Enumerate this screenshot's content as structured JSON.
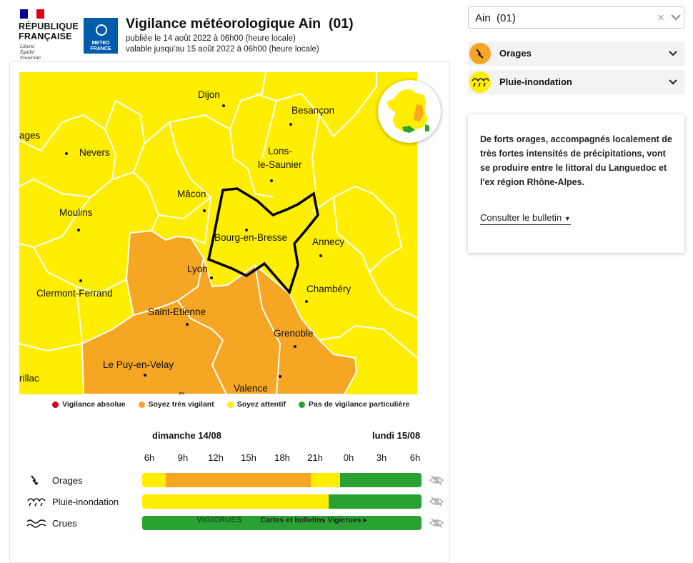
{
  "header": {
    "republique_line1": "RÉPUBLIQUE",
    "republique_line2": "FRANÇAISE",
    "motto_1": "Liberté",
    "motto_2": "Égalité",
    "motto_3": "Fraternité",
    "meteo_line1": "METEO",
    "meteo_line2": "FRANCE",
    "title": "Vigilance météorologique Ain  (01)",
    "published": "publiée le 14 août 2022 à 06h00 (heure locale)",
    "valid_until": "valable jusqu'au 15 août 2022 à 06h00 (heure locale)"
  },
  "map": {
    "cities": {
      "dijon": "Dijon",
      "besancon": "Besançon",
      "orages_cut": "ages",
      "nevers": "Nevers",
      "lons_1": "Lons-",
      "lons_2": "le-Saunier",
      "macon": "Mâcon",
      "moulins": "Moulins",
      "bourg": "Bourg-en-Bresse",
      "annecy": "Annecy",
      "lyon": "Lyon",
      "clermont": "Clermont-Ferrand",
      "chambery": "Chambéry",
      "saint_etienne": "Saint-Etienne",
      "grenoble": "Grenoble",
      "le_puy": "Le Puy-en-Velay",
      "aurillac_cut": "rillac",
      "valence": "Valence",
      "privas_cut": "P"
    }
  },
  "legend": [
    {
      "label": "Vigilance absolue",
      "color": "#d0021b"
    },
    {
      "label": "Soyez très vigilant",
      "color": "#f5a623"
    },
    {
      "label": "Soyez attentif",
      "color": "#ffee00"
    },
    {
      "label": "Pas de vigilance particulière",
      "color": "#2aa233"
    }
  ],
  "timeline": {
    "day1": "dimanche 14/08",
    "day2": "lundi 15/08",
    "hours": [
      "6h",
      "9h",
      "12h",
      "15h",
      "18h",
      "21h",
      "0h",
      "3h",
      "6h"
    ],
    "rows": [
      {
        "label": "Orages",
        "icon": "lightning-icon",
        "segments": [
          {
            "color": "#ffee00",
            "from_hour": 6,
            "to_hour": 8
          },
          {
            "color": "#f5a623",
            "from_hour": 8,
            "to_hour": 20.5
          },
          {
            "color": "#ffee00",
            "from_hour": 20.5,
            "to_hour": 23
          },
          {
            "color": "#2aa233",
            "from_hour": 23,
            "to_hour": 30
          }
        ]
      },
      {
        "label": "Pluie-inondation",
        "icon": "rain-icon",
        "segments": [
          {
            "color": "#ffee00",
            "from_hour": 6,
            "to_hour": 22
          },
          {
            "color": "#2aa233",
            "from_hour": 22,
            "to_hour": 30
          }
        ]
      },
      {
        "label": "Crues",
        "icon": "waves-icon",
        "vigicrues_logo": "VIGICRUES",
        "vigicrues_link": "Cartes et bulletins Vigicrues ▸"
      }
    ]
  },
  "panel": {
    "select_value": "Ain  (01)",
    "phenomena": [
      {
        "label": "Orages",
        "icon": "lightning-icon",
        "color": "#f5a623"
      },
      {
        "label": "Pluie-inondation",
        "icon": "rain-icon",
        "color": "#ffee00"
      }
    ],
    "bulletin_text": "De forts orages, accompagnés localement de très fortes intensités de précipitations, vont se produire entre le littoral du Languedoc et l'ex région Rhône-Alpes.",
    "bulletin_link": "Consulter le bulletin"
  },
  "colors": {
    "yellow": "#ffee00",
    "orange": "#f5a623",
    "green": "#2aa233",
    "red": "#d0021b"
  }
}
